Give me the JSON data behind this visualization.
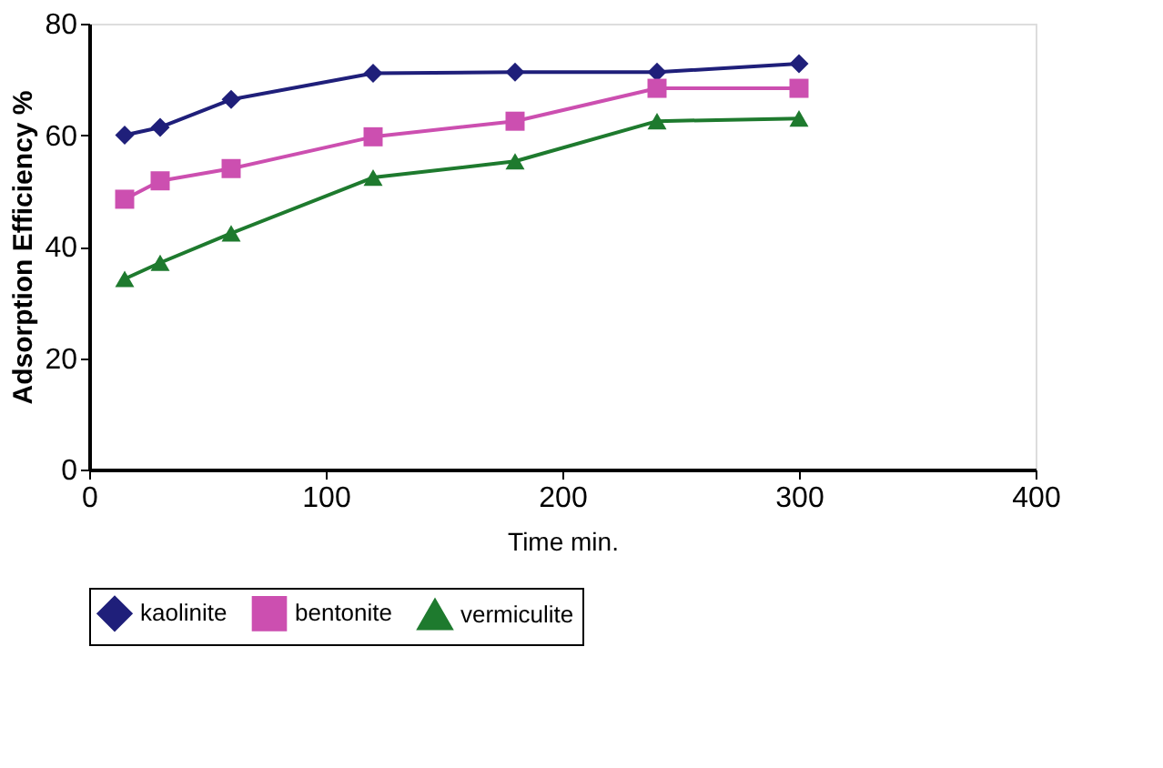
{
  "chart_data": {
    "type": "line",
    "xlabel": "Time min.",
    "ylabel": "Adsorption Efficiency %",
    "x": [
      15,
      30,
      60,
      120,
      180,
      240,
      300
    ],
    "series": [
      {
        "name": "kaolinite",
        "color": "#1f1f7a",
        "marker": "diamond",
        "values": [
          60,
          61.4,
          66.4,
          71.1,
          71.3,
          71.3,
          72.8
        ]
      },
      {
        "name": "bentonite",
        "color": "#cc4fb0",
        "marker": "square",
        "values": [
          48.5,
          51.8,
          54,
          59.7,
          62.5,
          68.4,
          68.4
        ]
      },
      {
        "name": "vermiculite",
        "color": "#1e7a2e",
        "marker": "triangle",
        "values": [
          34.2,
          37.1,
          42.4,
          52.4,
          55.3,
          62.5,
          63
        ]
      }
    ],
    "xlim": [
      0,
      400
    ],
    "xticks": [
      0,
      100,
      200,
      300,
      400
    ],
    "ylim": [
      0,
      80
    ],
    "yticks": [
      0,
      20,
      40,
      60,
      80
    ],
    "grid": false,
    "legend": "bottom",
    "line_style": "solid"
  }
}
